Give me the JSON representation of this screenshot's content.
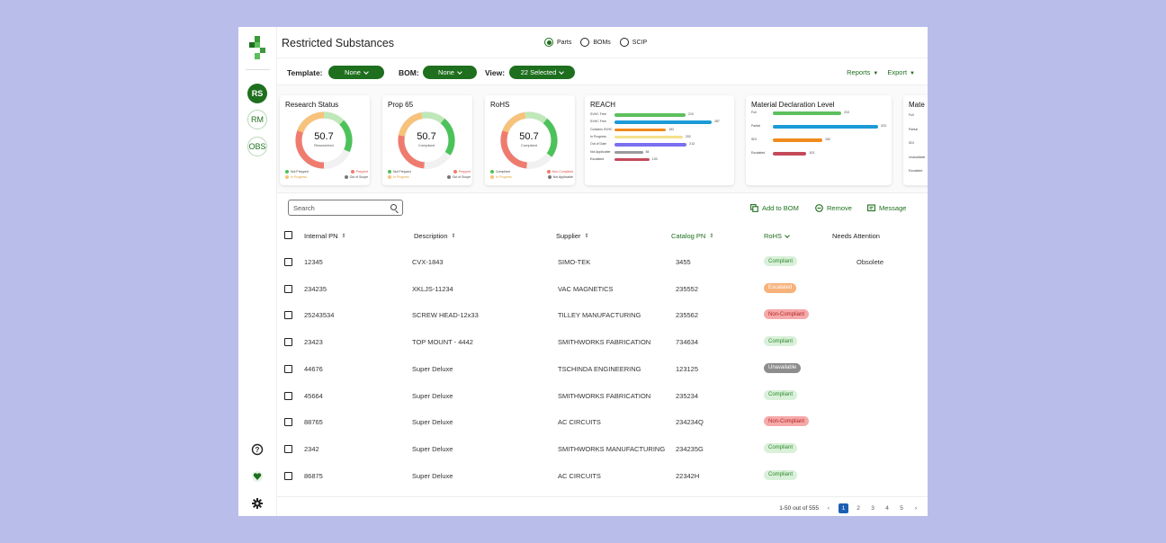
{
  "app": {
    "title": "Restricted Substances"
  },
  "rail": {
    "items": [
      {
        "label": "RS",
        "active": true
      },
      {
        "label": "RM",
        "active": false
      },
      {
        "label": "OBS",
        "active": false
      }
    ],
    "bottom_icons": [
      "help-icon",
      "heart-icon",
      "gear-icon"
    ]
  },
  "view_options": [
    {
      "label": "Parts",
      "selected": true
    },
    {
      "label": "BOMs",
      "selected": false
    },
    {
      "label": "SCIP",
      "selected": false
    }
  ],
  "filters": {
    "template_label": "Template:",
    "template_value": "None",
    "bom_label": "BOM:",
    "bom_value": "None",
    "view_label": "View:",
    "view_value": "22 Selected",
    "reports_label": "Reports",
    "export_label": "Export"
  },
  "cards": {
    "research_status": {
      "title": "Research Status",
      "value": "50.7",
      "sublabel": "Researched",
      "legend": [
        "Not Prepped",
        "Prepped",
        "In Progress",
        "Out of Scope"
      ]
    },
    "prop65": {
      "title": "Prop 65",
      "value": "50.7",
      "sublabel": "Compliant",
      "legend": [
        "Not Prepped",
        "Prepped",
        "In Progress",
        "Out of Scope"
      ]
    },
    "rohs": {
      "title": "RoHS",
      "value": "50.7",
      "sublabel": "Compliant",
      "legend": [
        "Compliant",
        "Non-Compliant",
        "In Progress",
        "Not Applicable"
      ]
    },
    "reach": {
      "title": "REACH",
      "rows": [
        {
          "label": "SVHC Free",
          "value": 210,
          "color": "#5cbf5c"
        },
        {
          "label": "SVHC Free",
          "value": 287,
          "color": "#1a9ad6"
        },
        {
          "label": "Contains SVHC",
          "value": 152,
          "color": "#f08a1c"
        },
        {
          "label": "In Progress",
          "value": 202,
          "color": "#f5e08c"
        },
        {
          "label": "Out of Date",
          "value": 213,
          "color": "#7a6ff0"
        },
        {
          "label": "Not Applicable",
          "value": 84,
          "color": "#9a9a9a"
        },
        {
          "label": "Escalated",
          "value": 103,
          "color": "#c44a5a"
        }
      ]
    },
    "material_declaration": {
      "title": "Material Declaration Level",
      "rows": [
        {
          "label": "Full",
          "value": 210,
          "color": "#5cbf5c"
        },
        {
          "label": "Partial",
          "value": 323,
          "color": "#1a9ad6"
        },
        {
          "label": "SDI",
          "value": 152,
          "color": "#f08a1c"
        },
        {
          "label": "Escalated",
          "value": 103,
          "color": "#c44a5a"
        }
      ]
    },
    "partial_card": {
      "title": "Mate",
      "rows": [
        "Full",
        "Partial",
        "SDI",
        "Unavailable",
        "Escalated"
      ]
    }
  },
  "toolbar": {
    "search_placeholder": "Search",
    "add_to_bom": "Add to BOM",
    "remove": "Remove",
    "message": "Message"
  },
  "table": {
    "columns": {
      "internal_pn": "Internal PN",
      "description": "Description",
      "supplier": "Supplier",
      "catalog_pn": "Catalog PN",
      "rohs": "RoHS",
      "needs_attention": "Needs Attention"
    },
    "rows": [
      {
        "internal_pn": "12345",
        "description": "CVX-1843",
        "supplier": "SIMO-TEK",
        "catalog_pn": "3455",
        "rohs": "Compliant",
        "needs_attention": "Obsolete"
      },
      {
        "internal_pn": "234235",
        "description": "XKLJS-11234",
        "supplier": "VAC MAGNETICS",
        "catalog_pn": "235552",
        "rohs": "Escalated",
        "needs_attention": ""
      },
      {
        "internal_pn": "25243534",
        "description": "SCREW HEAD-12x33",
        "supplier": "TILLEY MANUFACTURING",
        "catalog_pn": "235562",
        "rohs": "Non-Compliant",
        "needs_attention": ""
      },
      {
        "internal_pn": "23423",
        "description": "TOP MOUNT - 4442",
        "supplier": "SMITHWORKS FABRICATION",
        "catalog_pn": "734634",
        "rohs": "Compliant",
        "needs_attention": ""
      },
      {
        "internal_pn": "44676",
        "description": "Super Deluxe",
        "supplier": "TSCHINDA ENGINEERING",
        "catalog_pn": "123125",
        "rohs": "Unavailable",
        "needs_attention": ""
      },
      {
        "internal_pn": "45664",
        "description": "Super Deluxe",
        "supplier": "SMITHWORKS FABRICATION",
        "catalog_pn": "235234",
        "rohs": "Compliant",
        "needs_attention": ""
      },
      {
        "internal_pn": "88765",
        "description": "Super Deluxe",
        "supplier": "AC CIRCUITS",
        "catalog_pn": "234234Q",
        "rohs": "Non-Compliant",
        "needs_attention": ""
      },
      {
        "internal_pn": "2342",
        "description": "Super Deluxe",
        "supplier": "SMITHWORKS MANUFACTURING",
        "catalog_pn": "234235G",
        "rohs": "Compliant",
        "needs_attention": ""
      },
      {
        "internal_pn": "86875",
        "description": "Super Deluxe",
        "supplier": "AC CIRCUITS",
        "catalog_pn": "22342H",
        "rohs": "Compliant",
        "needs_attention": ""
      }
    ]
  },
  "status_colors": {
    "Compliant": {
      "bg": "#d9f0d9",
      "fg": "#2e8b2e"
    },
    "Escalated": {
      "bg": "#f7b27a",
      "fg": "#ffffff"
    },
    "Non-Compliant": {
      "bg": "#f6a9a9",
      "fg": "#b32424"
    },
    "Unavailable": {
      "bg": "#8d8d8d",
      "fg": "#ffffff"
    }
  },
  "footer": {
    "range": "1-50 out of 555",
    "pages": [
      "1",
      "2",
      "3",
      "4",
      "5"
    ],
    "current_page": "1"
  },
  "accent_color": "#1e6f1e"
}
